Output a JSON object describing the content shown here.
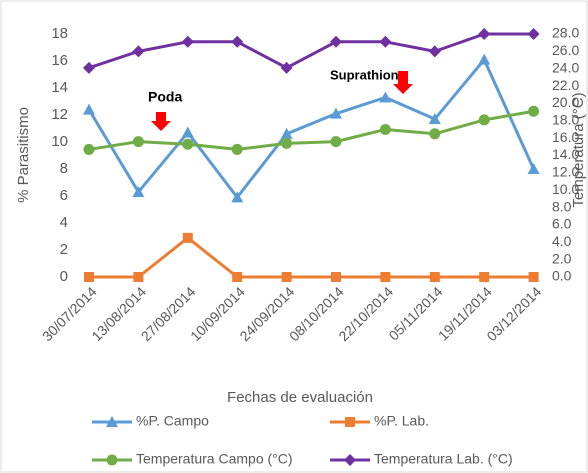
{
  "chart_data": {
    "type": "line",
    "y_label": "% Parasitismo",
    "y2_label": "Temperatura (°C)",
    "x_label": "Fechas de evaluación",
    "annotations": [
      "Poda",
      "Suprathion"
    ],
    "categories": [
      "30/07/2014",
      "13/08/2014",
      "27/08/2014",
      "10/09/2014",
      "24/09/2014",
      "08/10/2014",
      "22/10/2014",
      "05/11/2014",
      "19/11/2014",
      "03/12/2014"
    ],
    "series": [
      {
        "name": "%P. Campo",
        "color": "#5b9bd5",
        "marker": "triangle",
        "values": [
          12.4,
          6.3,
          10.7,
          5.9,
          10.6,
          12.1,
          13.3,
          11.7,
          16.1,
          8.0
        ]
      },
      {
        "name": "%P. Lab.",
        "color": "#ed7d31",
        "marker": "square",
        "values": [
          0,
          0,
          2.9,
          0,
          0,
          0,
          0,
          0,
          0,
          0
        ]
      },
      {
        "name": "Temperatura Campo (°C)",
        "color": "#70ad47",
        "marker": "circle",
        "axis": "y2",
        "values": [
          14.7,
          15.6,
          15.3,
          14.7,
          15.4,
          15.6,
          17.0,
          16.5,
          18.1,
          19.1
        ]
      },
      {
        "name": "Temperatura Lab. (°C)",
        "color": "#7030a0",
        "marker": "diamond",
        "axis": "y2",
        "values": [
          24.1,
          26.0,
          27.1,
          27.1,
          24.1,
          27.1,
          27.1,
          26.0,
          28.0,
          28.0
        ]
      }
    ],
    "ylim": [
      0,
      18
    ],
    "yticks": [
      0,
      2,
      4,
      6,
      8,
      10,
      12,
      14,
      16,
      18
    ],
    "y2lim": [
      0,
      28
    ],
    "y2ticks": [
      {
        "value": 0,
        "label": "0.0"
      },
      {
        "value": 2,
        "label": "2.0"
      },
      {
        "value": 4,
        "label": "4.0"
      },
      {
        "value": 6,
        "label": "6.0"
      },
      {
        "value": 8,
        "label": "8.0"
      },
      {
        "value": 10,
        "label": "10.0"
      },
      {
        "value": 12,
        "label": "12.0"
      },
      {
        "value": 14,
        "label": "14.0"
      },
      {
        "value": 16,
        "label": "16.0"
      },
      {
        "value": 18,
        "label": "18.0"
      },
      {
        "value": 20,
        "label": "20.0"
      },
      {
        "value": 22,
        "label": "22.0"
      },
      {
        "value": 24,
        "label": "24.0"
      },
      {
        "value": 26,
        "label": "26.0"
      },
      {
        "value": 28,
        "label": "28.0"
      }
    ],
    "grid": false
  }
}
